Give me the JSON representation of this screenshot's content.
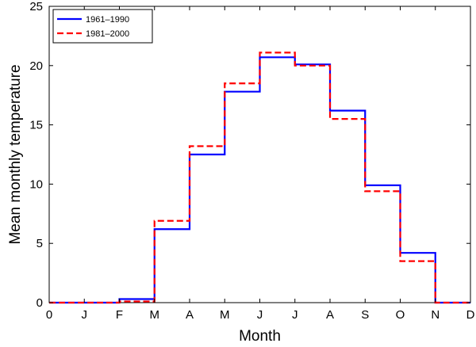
{
  "chart_data": {
    "type": "line",
    "step": "post",
    "title": "",
    "xlabel": "Month",
    "ylabel": "Mean monthly temperature",
    "x_tick_labels": [
      "0",
      "J",
      "F",
      "M",
      "A",
      "M",
      "J",
      "J",
      "A",
      "S",
      "O",
      "N",
      "D"
    ],
    "xlim": [
      0,
      12
    ],
    "ylim": [
      0,
      25
    ],
    "y_ticks": [
      0,
      5,
      10,
      15,
      20,
      25
    ],
    "grid": false,
    "legend_position": "top-left",
    "series": [
      {
        "name": "1961–1990",
        "color": "#0000ff",
        "line_style": "solid",
        "x": [
          0,
          1,
          2,
          3,
          4,
          5,
          6,
          7,
          8,
          9,
          10,
          11,
          12
        ],
        "y": [
          0,
          0,
          0.3,
          6.2,
          12.5,
          17.8,
          20.7,
          20.1,
          16.2,
          9.9,
          4.2,
          0,
          0
        ]
      },
      {
        "name": "1981–2000",
        "color": "#ff0000",
        "line_style": "dashed",
        "x": [
          0,
          1,
          2,
          3,
          4,
          5,
          6,
          7,
          8,
          9,
          10,
          11,
          12
        ],
        "y": [
          0,
          0,
          0.1,
          6.9,
          13.2,
          18.5,
          21.1,
          20.0,
          15.5,
          9.4,
          3.5,
          0,
          0
        ]
      }
    ]
  }
}
